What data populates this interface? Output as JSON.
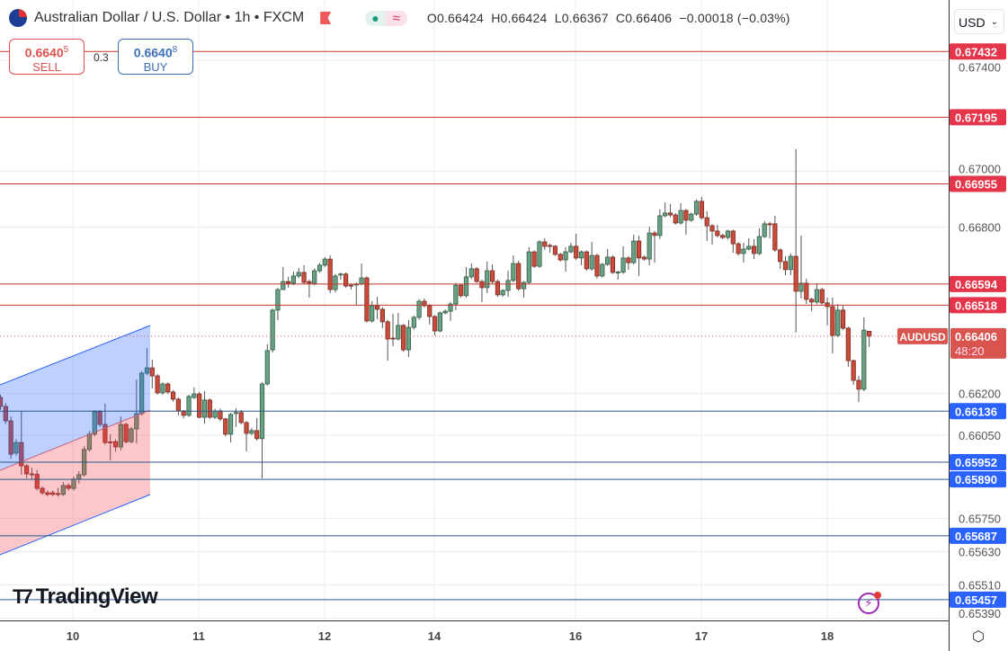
{
  "header": {
    "title": "Australian Dollar / U.S. Dollar • 1h • FXCM",
    "status_icons": [
      "market-open-dot-icon",
      "approx-icon"
    ],
    "ohlc": {
      "open": "O0.66424",
      "high": "H0.66424",
      "low": "L0.66367",
      "close": "C0.66406",
      "change": "−0.00018 (−0.03%)"
    }
  },
  "trade": {
    "sell_price_main": "0.6640",
    "sell_price_sup": "5",
    "sell_label": "SELL",
    "spread": "0.3",
    "buy_price_main": "0.6640",
    "buy_price_sup": "8",
    "buy_label": "BUY"
  },
  "currency_selector": {
    "value": "USD"
  },
  "logo": {
    "text": "TradingView"
  },
  "colors": {
    "bull": "#6aa083",
    "bull_border": "#2f5e45",
    "bear": "#c94c3d",
    "bear_border": "#7a2a20",
    "resistance": "#c0392b",
    "support": "#2a5a8a",
    "resistance_label": "#e5354a",
    "support_label": "#2962ff",
    "current_price": "#d9534f"
  },
  "chart_data": {
    "type": "candlestick",
    "symbol": "AUDUSD",
    "interval": "1h",
    "current_price": "0.66406",
    "countdown": "48:20",
    "y_ticks": [
      "0.67400",
      "0.67000",
      "0.66800",
      "0.66200",
      "0.66050",
      "0.65750",
      "0.65630",
      "0.65510",
      "0.65390"
    ],
    "x_ticks": [
      "10",
      "11",
      "12",
      "14",
      "16",
      "17",
      "18"
    ],
    "grid": true,
    "resistance_levels": [
      "0.67432",
      "0.67195",
      "0.66955",
      "0.66594",
      "0.66518"
    ],
    "support_levels": [
      "0.66136",
      "0.65952",
      "0.65890",
      "0.65687",
      "0.65457"
    ],
    "ohlc_order": [
      "open",
      "high",
      "low",
      "close"
    ],
    "candles": [
      [
        0.66185,
        0.66195,
        0.6614,
        0.66153
      ],
      [
        0.66153,
        0.66165,
        0.6609,
        0.66101
      ],
      [
        0.66101,
        0.66117,
        0.65965,
        0.65981
      ],
      [
        0.65985,
        0.66035,
        0.65975,
        0.66023
      ],
      [
        0.66023,
        0.66137,
        0.65907,
        0.65939
      ],
      [
        0.65939,
        0.65945,
        0.65895,
        0.6591
      ],
      [
        0.6591,
        0.65933,
        0.65891,
        0.65908
      ],
      [
        0.65908,
        0.65925,
        0.6585,
        0.65858
      ],
      [
        0.65858,
        0.65865,
        0.65835,
        0.65842
      ],
      [
        0.65842,
        0.6585,
        0.6583,
        0.65836
      ],
      [
        0.65842,
        0.6585,
        0.6583,
        0.65836
      ],
      [
        0.65839,
        0.6586,
        0.65828,
        0.65836
      ],
      [
        0.65836,
        0.6588,
        0.6583,
        0.65868
      ],
      [
        0.65868,
        0.65875,
        0.6585,
        0.65858
      ],
      [
        0.65858,
        0.659,
        0.6585,
        0.65891
      ],
      [
        0.65891,
        0.6592,
        0.65875,
        0.65907
      ],
      [
        0.65907,
        0.6601,
        0.659,
        0.65998
      ],
      [
        0.65998,
        0.66065,
        0.6599,
        0.66053
      ],
      [
        0.66053,
        0.6614,
        0.66045,
        0.66134
      ],
      [
        0.66134,
        0.6614,
        0.6608,
        0.66088
      ],
      [
        0.66088,
        0.66163,
        0.66015,
        0.66023
      ],
      [
        0.66025,
        0.66053,
        0.65959,
        0.66023
      ],
      [
        0.66026,
        0.66035,
        0.6599,
        0.66007
      ],
      [
        0.66007,
        0.66117,
        0.65995,
        0.66088
      ],
      [
        0.66088,
        0.66095,
        0.6602,
        0.66026
      ],
      [
        0.66026,
        0.6608,
        0.6602,
        0.66072
      ],
      [
        0.66072,
        0.6625,
        0.6602,
        0.66127
      ],
      [
        0.66127,
        0.6628,
        0.6612,
        0.66273
      ],
      [
        0.66273,
        0.66364,
        0.66265,
        0.66292
      ],
      [
        0.66292,
        0.66322,
        0.66218,
        0.66263
      ],
      [
        0.66263,
        0.6627,
        0.66195,
        0.66202
      ],
      [
        0.66202,
        0.6624,
        0.66195,
        0.66234
      ],
      [
        0.66234,
        0.6624,
        0.66198,
        0.66205
      ],
      [
        0.66205,
        0.66212,
        0.6617,
        0.66179
      ],
      [
        0.66179,
        0.66185,
        0.66121,
        0.66137
      ],
      [
        0.66137,
        0.6614,
        0.6611,
        0.66121
      ],
      [
        0.66121,
        0.66195,
        0.66115,
        0.66189
      ],
      [
        0.66185,
        0.66221,
        0.6618,
        0.66198
      ],
      [
        0.66198,
        0.66205,
        0.6611,
        0.66114
      ],
      [
        0.66114,
        0.66208,
        0.66091,
        0.66176
      ],
      [
        0.66176,
        0.66182,
        0.66108,
        0.66114
      ],
      [
        0.66114,
        0.66145,
        0.66108,
        0.66137
      ],
      [
        0.66137,
        0.66145,
        0.661,
        0.66108
      ],
      [
        0.66108,
        0.66112,
        0.66045,
        0.66053
      ],
      [
        0.66053,
        0.6613,
        0.66023,
        0.66124
      ],
      [
        0.6613,
        0.66147,
        0.66079,
        0.66131
      ],
      [
        0.66131,
        0.6614,
        0.66088,
        0.66095
      ],
      [
        0.66095,
        0.661,
        0.65991,
        0.66056
      ],
      [
        0.66056,
        0.66075,
        0.6605,
        0.66066
      ],
      [
        0.66066,
        0.66111,
        0.6603,
        0.66037
      ],
      [
        0.66037,
        0.6624,
        0.65894,
        0.66234
      ],
      [
        0.66234,
        0.66377,
        0.66228,
        0.66354
      ],
      [
        0.66357,
        0.66505,
        0.66347,
        0.665
      ],
      [
        0.665,
        0.6658,
        0.66464,
        0.66574
      ],
      [
        0.66574,
        0.66655,
        0.66577,
        0.66603
      ],
      [
        0.66603,
        0.6662,
        0.66581,
        0.66597
      ],
      [
        0.66597,
        0.66639,
        0.6659,
        0.66623
      ],
      [
        0.66623,
        0.66652,
        0.66615,
        0.66636
      ],
      [
        0.66636,
        0.66662,
        0.66595,
        0.666
      ],
      [
        0.66603,
        0.6661,
        0.66545,
        0.66597
      ],
      [
        0.66597,
        0.6665,
        0.6659,
        0.66642
      ],
      [
        0.66642,
        0.6667,
        0.66635,
        0.66662
      ],
      [
        0.66662,
        0.66691,
        0.66655,
        0.66684
      ],
      [
        0.66684,
        0.66697,
        0.66561,
        0.66574
      ],
      [
        0.66574,
        0.6663,
        0.66564,
        0.66623
      ],
      [
        0.66627,
        0.66635,
        0.6661,
        0.6663
      ],
      [
        0.6663,
        0.66636,
        0.6658,
        0.66587
      ],
      [
        0.6659,
        0.66595,
        0.66574,
        0.66587
      ],
      [
        0.66592,
        0.666,
        0.66519,
        0.66594
      ],
      [
        0.66594,
        0.66668,
        0.6659,
        0.66616
      ],
      [
        0.66616,
        0.66622,
        0.66455,
        0.66461
      ],
      [
        0.66461,
        0.66532,
        0.66455,
        0.66516
      ],
      [
        0.66516,
        0.66548,
        0.66467,
        0.66503
      ],
      [
        0.66503,
        0.6651,
        0.66435,
        0.66458
      ],
      [
        0.66458,
        0.66465,
        0.66318,
        0.66396
      ],
      [
        0.66399,
        0.66487,
        0.6637,
        0.66398
      ],
      [
        0.66396,
        0.6649,
        0.6639,
        0.66445
      ],
      [
        0.66445,
        0.6645,
        0.6635,
        0.66357
      ],
      [
        0.66357,
        0.66464,
        0.66331,
        0.66438
      ],
      [
        0.66438,
        0.6648,
        0.6643,
        0.66474
      ],
      [
        0.66474,
        0.6654,
        0.66465,
        0.66532
      ],
      [
        0.66532,
        0.66542,
        0.6651,
        0.66516
      ],
      [
        0.66516,
        0.66522,
        0.66448,
        0.66477
      ],
      [
        0.66477,
        0.66482,
        0.66409,
        0.66425
      ],
      [
        0.66425,
        0.66495,
        0.6642,
        0.6649
      ],
      [
        0.6649,
        0.66502,
        0.66485,
        0.66496
      ],
      [
        0.66496,
        0.6653,
        0.66461,
        0.66522
      ],
      [
        0.66522,
        0.66598,
        0.665,
        0.6659
      ],
      [
        0.6659,
        0.66595,
        0.66545,
        0.66552
      ],
      [
        0.66552,
        0.66655,
        0.66545,
        0.6662
      ],
      [
        0.6662,
        0.66668,
        0.66612,
        0.66649
      ],
      [
        0.66649,
        0.66655,
        0.66598,
        0.66603
      ],
      [
        0.66603,
        0.6661,
        0.66529,
        0.66581
      ],
      [
        0.66581,
        0.66675,
        0.66561,
        0.66642
      ],
      [
        0.66642,
        0.66665,
        0.66595,
        0.66603
      ],
      [
        0.66603,
        0.6661,
        0.66548,
        0.66555
      ],
      [
        0.66555,
        0.66575,
        0.66548,
        0.66571
      ],
      [
        0.66571,
        0.66642,
        0.66548,
        0.66607
      ],
      [
        0.66607,
        0.66697,
        0.666,
        0.66668
      ],
      [
        0.66668,
        0.66678,
        0.6657,
        0.66577
      ],
      [
        0.66577,
        0.66605,
        0.66545,
        0.666
      ],
      [
        0.666,
        0.66727,
        0.66595,
        0.6671
      ],
      [
        0.6671,
        0.66715,
        0.66652,
        0.66658
      ],
      [
        0.66658,
        0.66752,
        0.66652,
        0.66746
      ],
      [
        0.66746,
        0.66759,
        0.66717,
        0.6673
      ],
      [
        0.66733,
        0.6674,
        0.66707,
        0.66731
      ],
      [
        0.6673,
        0.66735,
        0.66695,
        0.66701
      ],
      [
        0.66701,
        0.66706,
        0.66675,
        0.66681
      ],
      [
        0.66681,
        0.66727,
        0.66639,
        0.6671
      ],
      [
        0.6671,
        0.66743,
        0.66705,
        0.6673
      ],
      [
        0.6673,
        0.66775,
        0.6668,
        0.66688
      ],
      [
        0.66688,
        0.66715,
        0.66662,
        0.6671
      ],
      [
        0.6671,
        0.66715,
        0.66642,
        0.66649
      ],
      [
        0.66649,
        0.66746,
        0.66642,
        0.66697
      ],
      [
        0.66697,
        0.66703,
        0.66613,
        0.66623
      ],
      [
        0.66623,
        0.6667,
        0.66617,
        0.66665
      ],
      [
        0.66665,
        0.6672,
        0.6666,
        0.66691
      ],
      [
        0.66691,
        0.66697,
        0.6663,
        0.66636
      ],
      [
        0.66636,
        0.66642,
        0.6661,
        0.66637
      ],
      [
        0.66637,
        0.6673,
        0.6663,
        0.66688
      ],
      [
        0.66688,
        0.66695,
        0.66645,
        0.66671
      ],
      [
        0.66671,
        0.66772,
        0.66665,
        0.66749
      ],
      [
        0.66749,
        0.66768,
        0.66623,
        0.66688
      ],
      [
        0.66691,
        0.66697,
        0.66678,
        0.66684
      ],
      [
        0.66684,
        0.668,
        0.66662,
        0.66778
      ],
      [
        0.66778,
        0.66785,
        0.66671,
        0.66769
      ],
      [
        0.66769,
        0.66863,
        0.66756,
        0.6684
      ],
      [
        0.6684,
        0.66888,
        0.66835,
        0.6685
      ],
      [
        0.6685,
        0.66882,
        0.66835,
        0.66843
      ],
      [
        0.66843,
        0.6685,
        0.66808,
        0.66814
      ],
      [
        0.66814,
        0.66885,
        0.66808,
        0.66859
      ],
      [
        0.66859,
        0.66865,
        0.66772,
        0.66824
      ],
      [
        0.66824,
        0.66852,
        0.66818,
        0.66846
      ],
      [
        0.66846,
        0.66898,
        0.6684,
        0.66892
      ],
      [
        0.66892,
        0.66908,
        0.66826,
        0.66833
      ],
      [
        0.66833,
        0.66856,
        0.66749,
        0.66804
      ],
      [
        0.66804,
        0.6681,
        0.66736,
        0.66785
      ],
      [
        0.66785,
        0.66807,
        0.66762,
        0.66769
      ],
      [
        0.66769,
        0.66775,
        0.66755,
        0.66762
      ],
      [
        0.66762,
        0.6679,
        0.66755,
        0.66785
      ],
      [
        0.66785,
        0.6679,
        0.66707,
        0.66739
      ],
      [
        0.66739,
        0.66745,
        0.66697,
        0.66704
      ],
      [
        0.66704,
        0.66743,
        0.66671,
        0.6672
      ],
      [
        0.6672,
        0.66759,
        0.66715,
        0.6673
      ],
      [
        0.6673,
        0.66756,
        0.66684,
        0.66704
      ],
      [
        0.66704,
        0.66795,
        0.66698,
        0.66765
      ],
      [
        0.66765,
        0.66821,
        0.6676,
        0.66811
      ],
      [
        0.66811,
        0.66818,
        0.66759,
        0.6681
      ],
      [
        0.66811,
        0.6684,
        0.6671,
        0.66717
      ],
      [
        0.66717,
        0.66722,
        0.66649,
        0.66675
      ],
      [
        0.66675,
        0.66694,
        0.66626,
        0.66646
      ],
      [
        0.66646,
        0.66704,
        0.66626,
        0.66694
      ],
      [
        0.66694,
        0.6708,
        0.66419,
        0.66568
      ],
      [
        0.66568,
        0.66769,
        0.66542,
        0.66597
      ],
      [
        0.66597,
        0.66613,
        0.66522,
        0.66539
      ],
      [
        0.66539,
        0.66545,
        0.66496,
        0.66529
      ],
      [
        0.66529,
        0.66597,
        0.66522,
        0.66574
      ],
      [
        0.66574,
        0.6658,
        0.6652,
        0.66526
      ],
      [
        0.66526,
        0.66545,
        0.66445,
        0.66513
      ],
      [
        0.66513,
        0.66545,
        0.66344,
        0.66409
      ],
      [
        0.66409,
        0.66522,
        0.66403,
        0.665
      ],
      [
        0.665,
        0.66516,
        0.66428,
        0.66435
      ],
      [
        0.66435,
        0.6644,
        0.66296,
        0.66318
      ],
      [
        0.66318,
        0.66322,
        0.66231,
        0.66247
      ],
      [
        0.66247,
        0.66263,
        0.66169,
        0.66215
      ],
      [
        0.66215,
        0.66474,
        0.66208,
        0.66428
      ],
      [
        0.66424,
        0.66424,
        0.66367,
        0.66406
      ]
    ]
  }
}
